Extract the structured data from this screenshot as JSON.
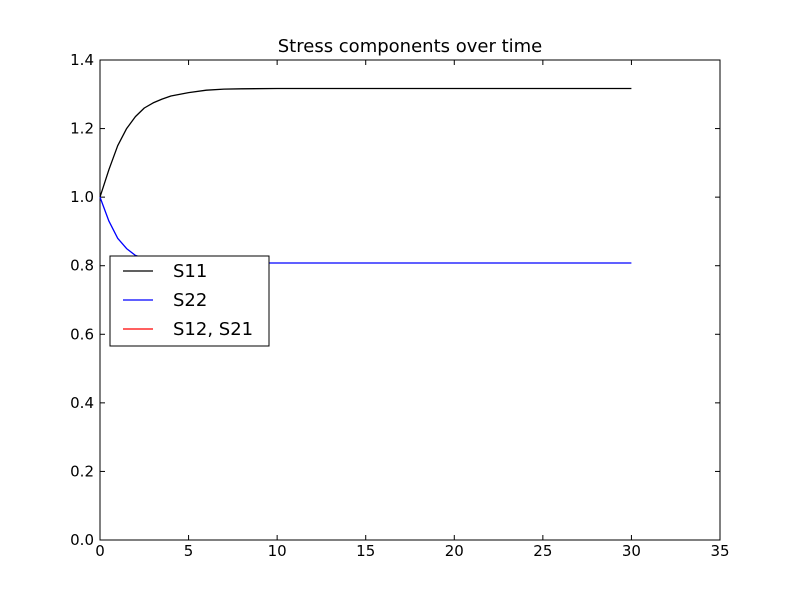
{
  "chart_data": {
    "type": "line",
    "title": "Stress components over time",
    "xlabel": "",
    "ylabel": "",
    "xlim": [
      0,
      35
    ],
    "ylim": [
      0.0,
      1.4
    ],
    "x_ticks": [
      "0",
      "5",
      "10",
      "15",
      "20",
      "25",
      "30",
      "35"
    ],
    "y_ticks": [
      "0.0",
      "0.2",
      "0.4",
      "0.6",
      "0.8",
      "1.0",
      "1.2",
      "1.4"
    ],
    "grid": false,
    "legend_position": "center-left",
    "series": [
      {
        "name": "S11",
        "color": "#000000",
        "x": [
          0,
          0.5,
          1,
          1.5,
          2,
          2.5,
          3,
          3.5,
          4,
          5,
          6,
          7,
          8,
          10,
          12,
          15,
          20,
          25,
          30
        ],
        "y": [
          1.0,
          1.08,
          1.15,
          1.2,
          1.235,
          1.26,
          1.275,
          1.286,
          1.295,
          1.305,
          1.312,
          1.315,
          1.316,
          1.317,
          1.317,
          1.317,
          1.317,
          1.317,
          1.317
        ]
      },
      {
        "name": "S22",
        "color": "#0000ff",
        "x": [
          0,
          0.5,
          1,
          1.5,
          2,
          2.5,
          3,
          3.5,
          4,
          5,
          6,
          7,
          8,
          10,
          12,
          15,
          20,
          25,
          30
        ],
        "y": [
          1.0,
          0.93,
          0.88,
          0.85,
          0.83,
          0.822,
          0.816,
          0.813,
          0.811,
          0.809,
          0.808,
          0.808,
          0.808,
          0.808,
          0.808,
          0.808,
          0.808,
          0.808,
          0.808
        ]
      },
      {
        "name": "S12, S21",
        "color": "#ff0000",
        "x": [],
        "y": []
      }
    ]
  }
}
